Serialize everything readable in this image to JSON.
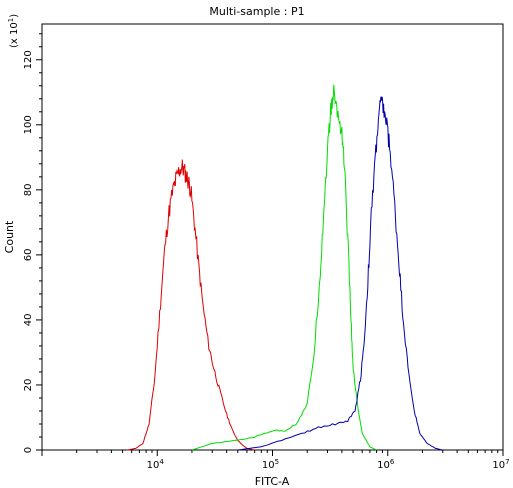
{
  "chart_data": {
    "type": "line",
    "title": "Multi-sample : P1",
    "xlabel": "FITC-A",
    "ylabel": "Count",
    "y_multiplier": {
      "base": "(x 10",
      "exp": "1",
      "close": ")"
    },
    "xscale": "log",
    "xlim": [
      1000,
      10000000
    ],
    "ylim": [
      0,
      131
    ],
    "grid": false,
    "x_ticks": [
      {
        "value": 10000,
        "base": "10",
        "exp": "4"
      },
      {
        "value": 100000,
        "base": "10",
        "exp": "5"
      },
      {
        "value": 1000000,
        "base": "10",
        "exp": "6"
      },
      {
        "value": 10000000,
        "base": "10",
        "exp": "7"
      }
    ],
    "y_ticks": [
      {
        "value": 0,
        "label": "0"
      },
      {
        "value": 20,
        "label": "20"
      },
      {
        "value": 40,
        "label": "40"
      },
      {
        "value": 60,
        "label": "60"
      },
      {
        "value": 80,
        "label": "80"
      },
      {
        "value": 100,
        "label": "100"
      },
      {
        "value": 120,
        "label": "120"
      }
    ],
    "series": [
      {
        "color": "#dd0000",
        "points": [
          [
            5500,
            0
          ],
          [
            6500,
            0.5
          ],
          [
            7500,
            2
          ],
          [
            8500,
            8
          ],
          [
            9500,
            22
          ],
          [
            10500,
            42
          ],
          [
            11500,
            60
          ],
          [
            12500,
            72
          ],
          [
            13500,
            79
          ],
          [
            14500,
            83
          ],
          [
            15500,
            86
          ],
          [
            16500,
            87
          ],
          [
            17500,
            85
          ],
          [
            18500,
            83
          ],
          [
            19500,
            80
          ],
          [
            21000,
            70
          ],
          [
            23000,
            56
          ],
          [
            25000,
            44
          ],
          [
            28000,
            32
          ],
          [
            31000,
            25
          ],
          [
            35000,
            18
          ],
          [
            40000,
            11
          ],
          [
            45000,
            6
          ],
          [
            50000,
            3
          ],
          [
            55000,
            1.5
          ],
          [
            60000,
            0.5
          ],
          [
            70000,
            0
          ]
        ]
      },
      {
        "color": "#00dd00",
        "points": [
          [
            20000,
            0
          ],
          [
            30000,
            2
          ],
          [
            50000,
            3
          ],
          [
            70000,
            4
          ],
          [
            100000,
            6
          ],
          [
            130000,
            6
          ],
          [
            160000,
            8
          ],
          [
            200000,
            14
          ],
          [
            230000,
            30
          ],
          [
            260000,
            55
          ],
          [
            280000,
            75
          ],
          [
            300000,
            92
          ],
          [
            320000,
            104
          ],
          [
            340000,
            110
          ],
          [
            370000,
            103
          ],
          [
            400000,
            98
          ],
          [
            420000,
            88
          ],
          [
            450000,
            65
          ],
          [
            480000,
            40
          ],
          [
            500000,
            25
          ],
          [
            550000,
            13
          ],
          [
            600000,
            5
          ],
          [
            700000,
            1
          ],
          [
            800000,
            0
          ]
        ]
      },
      {
        "color": "#0000aa",
        "points": [
          [
            50000,
            0
          ],
          [
            80000,
            1
          ],
          [
            120000,
            3
          ],
          [
            180000,
            5
          ],
          [
            250000,
            7
          ],
          [
            350000,
            8
          ],
          [
            450000,
            9
          ],
          [
            520000,
            12
          ],
          [
            580000,
            22
          ],
          [
            630000,
            35
          ],
          [
            680000,
            55
          ],
          [
            720000,
            72
          ],
          [
            780000,
            90
          ],
          [
            830000,
            102
          ],
          [
            870000,
            107
          ],
          [
            920000,
            105
          ],
          [
            980000,
            100
          ],
          [
            1050000,
            92
          ],
          [
            1150000,
            75
          ],
          [
            1250000,
            58
          ],
          [
            1350000,
            42
          ],
          [
            1500000,
            25
          ],
          [
            1700000,
            12
          ],
          [
            1900000,
            5
          ],
          [
            2200000,
            2
          ],
          [
            2600000,
            0.5
          ],
          [
            3000000,
            0
          ]
        ]
      }
    ]
  }
}
